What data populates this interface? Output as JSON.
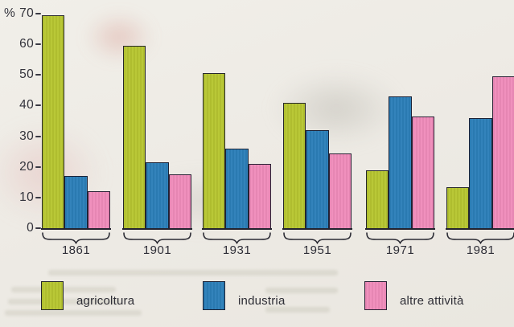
{
  "chart_data": {
    "type": "bar",
    "title": "",
    "y_unit": "%",
    "ylabel": "%",
    "xlabel": "",
    "ylim": [
      0,
      70
    ],
    "yticks": [
      70,
      60,
      50,
      40,
      30,
      20,
      10,
      0
    ],
    "grid": false,
    "legend_position": "bottom",
    "categories": [
      "1861",
      "1901",
      "1931",
      "1951",
      "1971",
      "1981"
    ],
    "series": [
      {
        "name": "agricoltura",
        "color": "#b7c631",
        "values": [
          69.5,
          59.5,
          50.5,
          41.0,
          19.0,
          13.5
        ]
      },
      {
        "name": "industria",
        "color": "#2c7fb9",
        "values": [
          17.0,
          21.5,
          26.0,
          32.0,
          43.0,
          36.0
        ]
      },
      {
        "name": "altre attività",
        "color": "#f08cbb",
        "values": [
          12.0,
          17.5,
          21.0,
          24.5,
          36.5,
          49.5
        ]
      }
    ]
  }
}
